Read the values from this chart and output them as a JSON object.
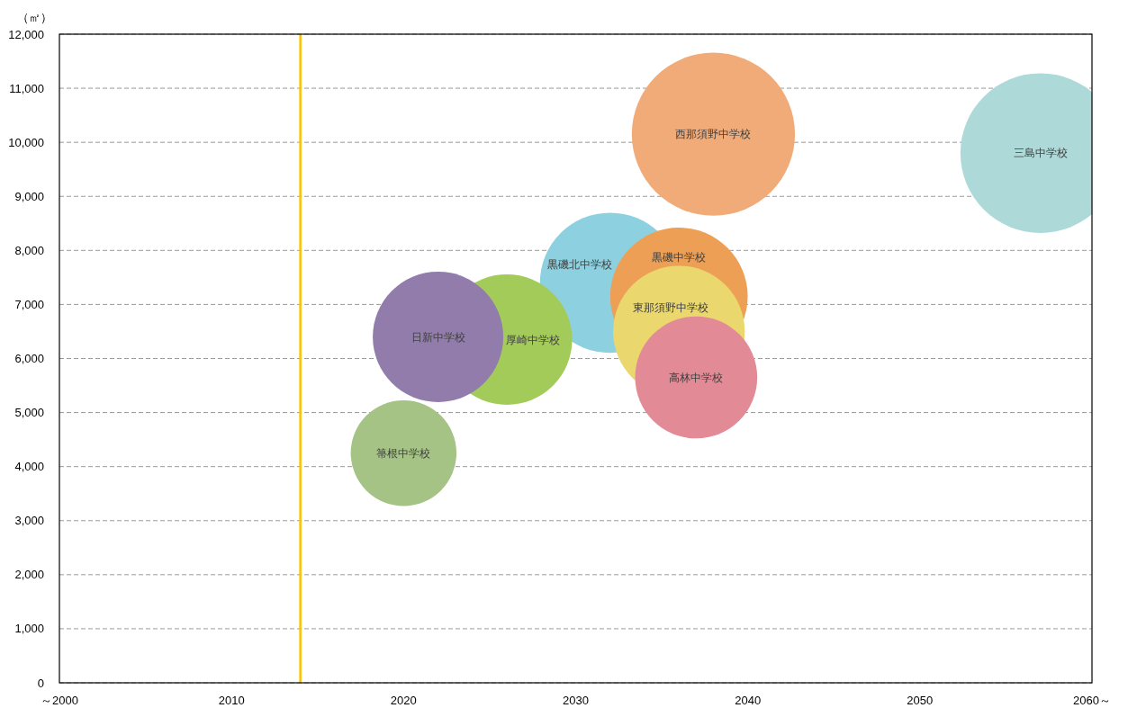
{
  "chart_data": {
    "type": "bubble",
    "ylabel": "（㎡）",
    "xlim": [
      2000,
      2060
    ],
    "xticks": [
      {
        "value": 2000,
        "label": "～2000"
      },
      2010,
      2020,
      2030,
      2040,
      2050,
      {
        "value": 2060,
        "label": "2060～"
      }
    ],
    "ylim": [
      0,
      12000
    ],
    "yticks": [
      0,
      {
        "value": 1000,
        "label": "1,000"
      },
      {
        "value": 2000,
        "label": "2,000"
      },
      {
        "value": 3000,
        "label": "3,000"
      },
      {
        "value": 4000,
        "label": "4,000"
      },
      {
        "value": 5000,
        "label": "5,000"
      },
      {
        "value": 6000,
        "label": "6,000"
      },
      {
        "value": 7000,
        "label": "7,000"
      },
      {
        "value": 8000,
        "label": "8,000"
      },
      {
        "value": 9000,
        "label": "9,000"
      },
      {
        "value": 10000,
        "label": "10,000"
      },
      {
        "value": 11000,
        "label": "11,000"
      },
      {
        "value": 12000,
        "label": "12,000"
      }
    ],
    "grid": "y",
    "ref_lines": [
      {
        "axis": "x",
        "value": 2014,
        "color": "#ffc000"
      }
    ],
    "series": [
      {
        "name": "西那須野中学校",
        "color": "#f0ab78",
        "x": [
          2038
        ],
        "values": [
          10150
        ],
        "sizes": [
          1
        ]
      },
      {
        "name": "三島中学校",
        "color": "#addad9",
        "x": [
          2057
        ],
        "values": [
          9800
        ],
        "sizes": [
          0.96
        ]
      },
      {
        "name": "黒磯北中学校",
        "color": "#8dd1e0",
        "x": [
          2032
        ],
        "values": [
          7400
        ],
        "sizes": [
          0.74
        ]
      },
      {
        "name": "厚崎中学校",
        "color": "#a3cb5a",
        "x": [
          2026
        ],
        "values": [
          6350
        ],
        "sizes": [
          0.64
        ]
      },
      {
        "name": "日新中学校",
        "color": "#917cab",
        "x": [
          2022
        ],
        "values": [
          6400
        ],
        "sizes": [
          0.64
        ]
      },
      {
        "name": "箒根中学校",
        "color": "#a6c386",
        "x": [
          2020
        ],
        "values": [
          4250
        ],
        "sizes": [
          0.42
        ]
      },
      {
        "name": "黒磯中学校",
        "color": "#eda055",
        "x": [
          2036
        ],
        "values": [
          7150
        ],
        "sizes": [
          0.71
        ]
      },
      {
        "name": "東那須野中学校",
        "color": "#ead86e",
        "x": [
          2036
        ],
        "values": [
          6500
        ],
        "sizes": [
          0.65
        ]
      },
      {
        "name": "高林中学校",
        "color": "#e28b96",
        "x": [
          2037
        ],
        "values": [
          5650
        ],
        "sizes": [
          0.56
        ]
      }
    ]
  }
}
